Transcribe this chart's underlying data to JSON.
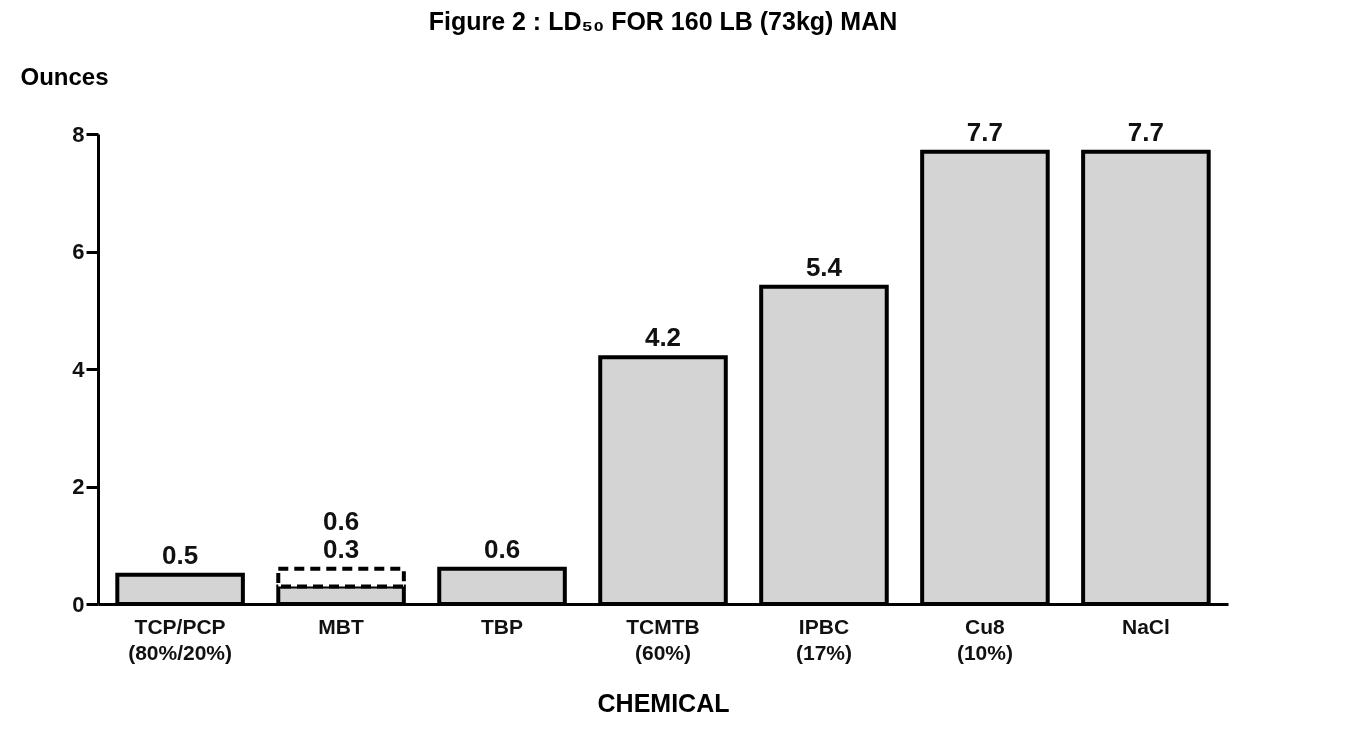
{
  "chart_data": {
    "type": "bar",
    "title": "Figure 2 :  LD₅₀ FOR 160 LB (73kg) MAN",
    "xlabel": "CHEMICAL",
    "ylabel": "Ounces",
    "categories": [
      "TCP/PCP\n(80%/20%)",
      "MBT",
      "TBP",
      "TCMTB\n(60%)",
      "IPBC\n(17%)",
      "Cu8\n(10%)",
      "NaCl"
    ],
    "stacked": true,
    "series": [
      {
        "color": "#d4d4d4",
        "values": [
          0.5,
          0.3,
          0.6,
          4.2,
          5.4,
          7.7,
          7.7
        ],
        "value_labels": [
          "0.5",
          "0.3",
          "0.6",
          "4.2",
          "5.4",
          "7.7",
          "7.7"
        ]
      },
      {
        "color": "#ffffff",
        "line_style": "dashed",
        "values": [
          null,
          0.3,
          null,
          null,
          null,
          null,
          null
        ]
      }
    ],
    "totals": [
      null,
      "0.6",
      null,
      null,
      null,
      null,
      null
    ],
    "ylim": [
      0,
      8
    ],
    "yticks": [
      0,
      2,
      4,
      6,
      8
    ],
    "grid": false
  }
}
